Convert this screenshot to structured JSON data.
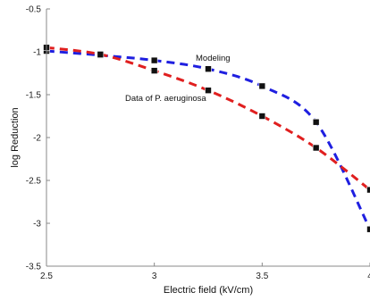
{
  "chart_data": {
    "type": "line",
    "xlabel": "Electric field (kV/cm)",
    "ylabel": "log Reduction",
    "xlim": [
      2.5,
      4
    ],
    "ylim": [
      -3.5,
      -0.5
    ],
    "xticks": [
      "2.5",
      "3",
      "3.5",
      "4"
    ],
    "yticks": [
      "-0.5",
      "-1",
      "-1.5",
      "-2",
      "-2.5",
      "-3",
      "-3.5"
    ],
    "grid": "off",
    "series": [
      {
        "name": "Modeling",
        "color": "#1f1fe0",
        "style": "dashed",
        "marker": "square",
        "x": [
          2.5,
          2.75,
          3.0,
          3.25,
          3.5,
          3.75,
          4.0
        ],
        "y": [
          -0.99,
          -1.04,
          -1.1,
          -1.2,
          -1.4,
          -1.82,
          -3.07
        ]
      },
      {
        "name": "Data of P. aeruginosa",
        "color": "#e01f1f",
        "style": "dashed",
        "marker": "square",
        "x": [
          2.5,
          2.75,
          3.0,
          3.25,
          3.5,
          3.75,
          4.0
        ],
        "y": [
          -0.95,
          -1.03,
          -1.22,
          -1.45,
          -1.75,
          -2.12,
          -2.61
        ]
      }
    ]
  }
}
